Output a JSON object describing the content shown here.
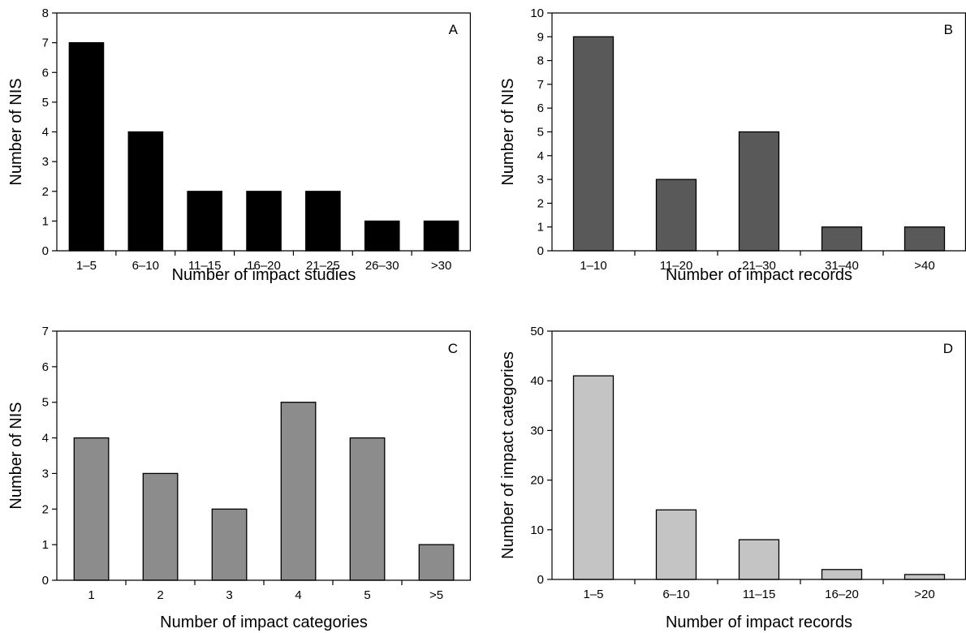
{
  "chart_data": [
    {
      "type": "bar",
      "panel_label": "A",
      "categories": [
        "1–5",
        "6–10",
        "11–15",
        "16–20",
        "21–25",
        "26–30",
        ">30"
      ],
      "values": [
        7,
        4,
        2,
        2,
        2,
        1,
        1
      ],
      "title": "",
      "xlabel": "Number of impact studies",
      "ylabel": "Number of NIS",
      "ylim": [
        0,
        8
      ],
      "yticks": [
        "0",
        "1",
        "2",
        "3",
        "4",
        "5",
        "6",
        "7",
        "8"
      ],
      "bar_color": "#000000",
      "grid": false,
      "legend": "none"
    },
    {
      "type": "bar",
      "panel_label": "B",
      "categories": [
        "1–10",
        "11–20",
        "21–30",
        "31–40",
        ">40"
      ],
      "values": [
        9,
        3,
        5,
        1,
        1
      ],
      "title": "",
      "xlabel": "Number of impact records",
      "ylabel": "Number of NIS",
      "ylim": [
        0,
        10
      ],
      "yticks": [
        "0",
        "1",
        "2",
        "3",
        "4",
        "5",
        "6",
        "7",
        "8",
        "9",
        "10"
      ],
      "bar_color": "#595959",
      "grid": false,
      "legend": "none"
    },
    {
      "type": "bar",
      "panel_label": "C",
      "categories": [
        "1",
        "2",
        "3",
        "4",
        "5",
        ">5"
      ],
      "values": [
        4,
        3,
        2,
        5,
        4,
        1
      ],
      "title": "",
      "xlabel": "Number of impact categories",
      "ylabel": "Number of NIS",
      "ylim": [
        0,
        7
      ],
      "yticks": [
        "0",
        "1",
        "2",
        "3",
        "4",
        "5",
        "6",
        "7"
      ],
      "bar_color": "#8c8c8c",
      "grid": false,
      "legend": "none"
    },
    {
      "type": "bar",
      "panel_label": "D",
      "categories": [
        "1–5",
        "6–10",
        "11–15",
        "16–20",
        ">20"
      ],
      "values": [
        41,
        14,
        8,
        2,
        1
      ],
      "title": "",
      "xlabel": "Number of impact records",
      "ylabel": "Number of impact categories",
      "ylim": [
        0,
        50
      ],
      "yticks": [
        "0",
        "10",
        "20",
        "30",
        "40",
        "50"
      ],
      "bar_color": "#c4c4c4",
      "grid": false,
      "legend": "none"
    }
  ]
}
